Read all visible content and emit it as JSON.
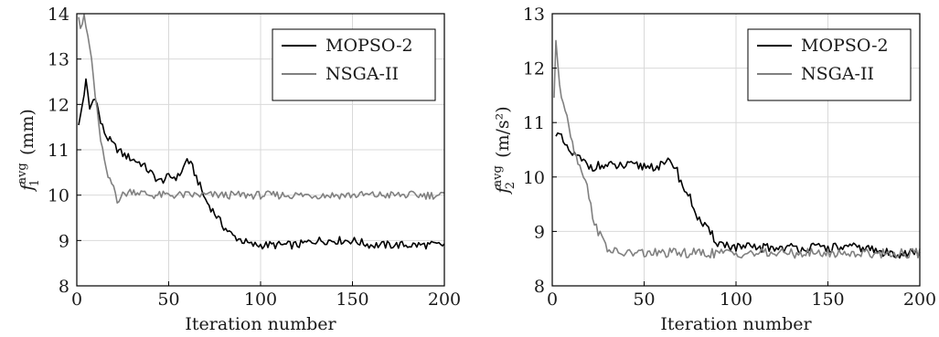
{
  "chart_data": [
    {
      "type": "line",
      "xlabel": "Iteration number",
      "ylabel": {
        "symbol": "f",
        "sub": "1",
        "sup": "avg",
        "unit": "(mm)"
      },
      "xlim": [
        0,
        200
      ],
      "ylim": [
        8,
        14
      ],
      "xticks": [
        0,
        50,
        100,
        150,
        200
      ],
      "yticks": [
        8,
        9,
        10,
        11,
        12,
        13,
        14
      ],
      "grid": true,
      "legend": "top-right",
      "series": [
        {
          "name": "MOPSO-2",
          "color": "#000000",
          "x": [
            1,
            3,
            5,
            7,
            10,
            13,
            16,
            20,
            25,
            30,
            35,
            40,
            45,
            50,
            55,
            58,
            60,
            63,
            66,
            70,
            75,
            80,
            85,
            90,
            95,
            100,
            110,
            120,
            130,
            140,
            150,
            160,
            170,
            180,
            190,
            200
          ],
          "y": [
            11.5,
            12.0,
            12.5,
            11.9,
            12.2,
            11.6,
            11.3,
            11.1,
            10.9,
            10.8,
            10.7,
            10.5,
            10.3,
            10.4,
            10.4,
            10.6,
            10.8,
            10.6,
            10.3,
            9.9,
            9.6,
            9.3,
            9.1,
            9.0,
            8.9,
            8.9,
            8.9,
            8.9,
            9.0,
            9.0,
            9.0,
            8.9,
            8.9,
            8.9,
            8.9,
            8.9
          ]
        },
        {
          "name": "NSGA-II",
          "color": "#808080",
          "x": [
            1,
            2,
            4,
            6,
            8,
            10,
            12,
            14,
            16,
            18,
            20,
            22,
            25,
            30,
            40,
            50,
            60,
            70,
            80,
            90,
            100,
            120,
            140,
            160,
            180,
            200
          ],
          "y": [
            14.0,
            13.7,
            13.9,
            13.5,
            13.0,
            12.2,
            11.5,
            11.0,
            10.5,
            10.3,
            10.2,
            9.9,
            10.0,
            10.1,
            10.0,
            10.0,
            10.0,
            10.0,
            10.0,
            10.0,
            10.0,
            10.0,
            10.0,
            10.0,
            10.0,
            10.0
          ]
        }
      ]
    },
    {
      "type": "line",
      "xlabel": "Iteration number",
      "ylabel": {
        "symbol": "f",
        "sub": "2",
        "sup": "avg",
        "unit": "(m/s²)"
      },
      "xlim": [
        0,
        200
      ],
      "ylim": [
        8,
        13
      ],
      "xticks": [
        0,
        50,
        100,
        150,
        200
      ],
      "yticks": [
        8,
        9,
        10,
        11,
        12,
        13
      ],
      "grid": true,
      "legend": "top-right",
      "series": [
        {
          "name": "MOPSO-2",
          "color": "#000000",
          "x": [
            2,
            5,
            8,
            12,
            16,
            20,
            25,
            30,
            35,
            40,
            45,
            50,
            55,
            60,
            65,
            68,
            70,
            75,
            80,
            85,
            90,
            100,
            110,
            120,
            130,
            140,
            150,
            160,
            170,
            180,
            190,
            200
          ],
          "y": [
            10.8,
            10.7,
            10.5,
            10.4,
            10.3,
            10.2,
            10.2,
            10.2,
            10.2,
            10.2,
            10.2,
            10.2,
            10.2,
            10.2,
            10.3,
            10.1,
            9.9,
            9.6,
            9.2,
            9.0,
            8.8,
            8.7,
            8.7,
            8.7,
            8.7,
            8.7,
            8.7,
            8.7,
            8.7,
            8.6,
            8.6,
            8.6
          ]
        },
        {
          "name": "NSGA-II",
          "color": "#808080",
          "x": [
            1,
            2,
            3,
            5,
            7,
            9,
            11,
            13,
            15,
            18,
            20,
            22,
            25,
            28,
            30,
            35,
            40,
            50,
            60,
            70,
            80,
            90,
            100,
            120,
            140,
            160,
            180,
            200
          ],
          "y": [
            11.5,
            12.5,
            12.0,
            11.5,
            11.3,
            11.0,
            10.6,
            10.4,
            10.2,
            10.0,
            9.6,
            9.3,
            9.0,
            8.8,
            8.7,
            8.6,
            8.6,
            8.6,
            8.6,
            8.6,
            8.6,
            8.6,
            8.6,
            8.6,
            8.6,
            8.6,
            8.6,
            8.6
          ]
        }
      ]
    }
  ]
}
